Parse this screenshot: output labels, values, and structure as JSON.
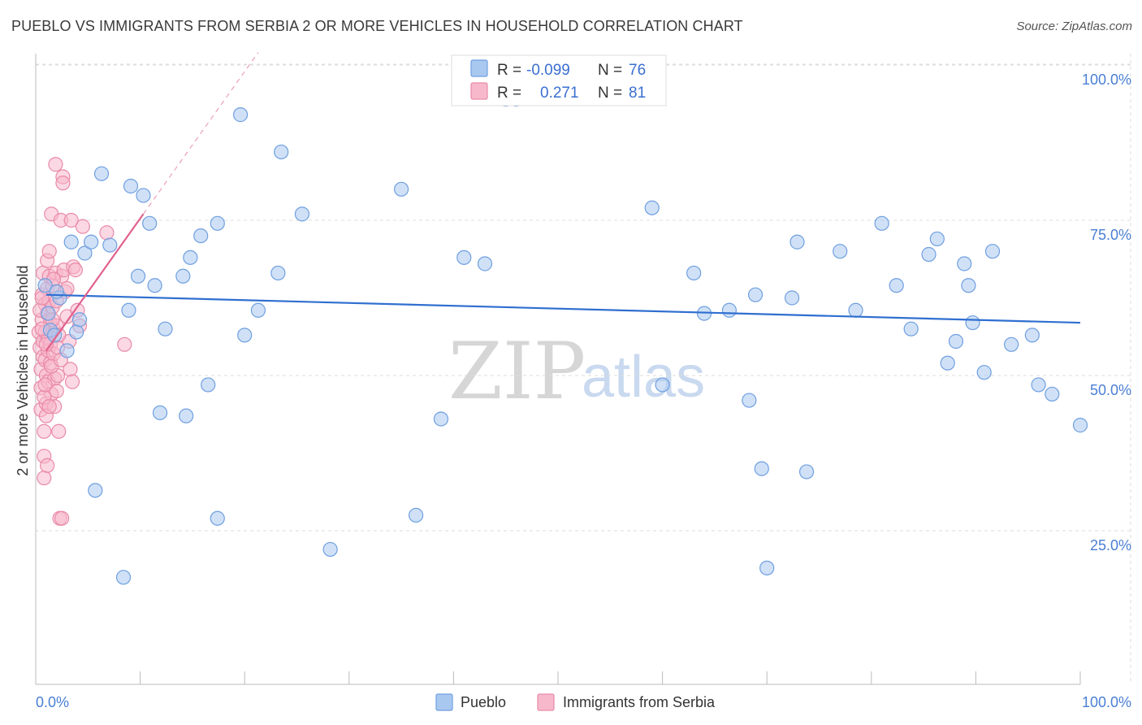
{
  "title": "PUEBLO VS IMMIGRANTS FROM SERBIA 2 OR MORE VEHICLES IN HOUSEHOLD CORRELATION CHART",
  "source": "Source: ZipAtlas.com",
  "watermark": {
    "zip": "ZIP",
    "atlas": "atlas"
  },
  "colors": {
    "pueblo_fill": "#a9c8f0",
    "pueblo_stroke": "#6f9fe0",
    "pueblo_line": "#2f6fd0",
    "serbia_fill": "#f7b8cc",
    "serbia_stroke": "#e98aa8",
    "serbia_line": "#e0608e",
    "tick_label": "#4a7fd4",
    "grid": "#dddddd"
  },
  "legend": {
    "rows": [
      {
        "r_label": "R =",
        "r_value": "-0.099",
        "n_label": "N =",
        "n_value": "76"
      },
      {
        "r_label": "R =",
        "r_value": "0.271",
        "n_label": "N =",
        "n_value": "81"
      }
    ]
  },
  "chart_data": {
    "type": "scatter",
    "title": "PUEBLO VS IMMIGRANTS FROM SERBIA 2 OR MORE VEHICLES IN HOUSEHOLD CORRELATION CHART",
    "xlabel": "",
    "ylabel": "2 or more Vehicles in Household",
    "xlim": [
      0,
      100
    ],
    "ylim": [
      0,
      102
    ],
    "x_tick_labels": [
      "0.0%",
      "100.0%"
    ],
    "y_ticks": [
      25,
      50,
      75,
      100
    ],
    "y_tick_labels": [
      "25.0%",
      "50.0%",
      "75.0%",
      "100.0%"
    ],
    "grid": true,
    "legend_position": "top-center",
    "series": [
      {
        "name": "Pueblo",
        "R": -0.099,
        "N": 76,
        "trend": {
          "x0": 1,
          "y0": 63.0,
          "x1": 100,
          "y1": 58.5
        },
        "points": [
          [
            0.9,
            64.5
          ],
          [
            1.4,
            57.3
          ],
          [
            1.8,
            56.5
          ],
          [
            2.3,
            62.5
          ],
          [
            3.0,
            54.0
          ],
          [
            3.4,
            71.5
          ],
          [
            3.9,
            57.0
          ],
          [
            4.2,
            59.0
          ],
          [
            4.7,
            69.7
          ],
          [
            5.3,
            71.5
          ],
          [
            5.7,
            31.5
          ],
          [
            6.3,
            82.5
          ],
          [
            7.1,
            71.0
          ],
          [
            8.4,
            17.5
          ],
          [
            8.9,
            60.5
          ],
          [
            9.1,
            80.5
          ],
          [
            9.8,
            66.0
          ],
          [
            10.3,
            79.0
          ],
          [
            10.9,
            74.5
          ],
          [
            11.4,
            64.5
          ],
          [
            11.9,
            44.0
          ],
          [
            12.4,
            57.5
          ],
          [
            14.1,
            66.0
          ],
          [
            14.4,
            43.5
          ],
          [
            14.8,
            69.0
          ],
          [
            15.8,
            72.5
          ],
          [
            16.5,
            48.5
          ],
          [
            17.4,
            74.5
          ],
          [
            17.4,
            27.0
          ],
          [
            19.6,
            92.0
          ],
          [
            20.0,
            56.5
          ],
          [
            21.3,
            60.5
          ],
          [
            23.2,
            66.5
          ],
          [
            23.5,
            86.0
          ],
          [
            25.5,
            76.0
          ],
          [
            28.2,
            22.0
          ],
          [
            35.0,
            80.0
          ],
          [
            36.4,
            27.5
          ],
          [
            38.8,
            43.0
          ],
          [
            41.0,
            69.0
          ],
          [
            43.0,
            68.0
          ],
          [
            45.0,
            94.5
          ],
          [
            46.0,
            94.5
          ],
          [
            59.0,
            77.0
          ],
          [
            60.0,
            48.5
          ],
          [
            63.0,
            66.5
          ],
          [
            64.0,
            60.0
          ],
          [
            66.4,
            60.5
          ],
          [
            68.3,
            46.0
          ],
          [
            68.9,
            63.0
          ],
          [
            69.5,
            35.0
          ],
          [
            70.0,
            19.0
          ],
          [
            72.4,
            62.5
          ],
          [
            72.9,
            71.5
          ],
          [
            73.8,
            34.5
          ],
          [
            77.0,
            70.0
          ],
          [
            78.5,
            60.5
          ],
          [
            81.0,
            74.5
          ],
          [
            82.4,
            64.5
          ],
          [
            83.8,
            57.5
          ],
          [
            85.5,
            69.5
          ],
          [
            86.3,
            72.0
          ],
          [
            87.3,
            52.0
          ],
          [
            88.1,
            55.5
          ],
          [
            88.9,
            68.0
          ],
          [
            89.3,
            64.5
          ],
          [
            89.7,
            58.5
          ],
          [
            90.8,
            50.5
          ],
          [
            91.6,
            70.0
          ],
          [
            93.4,
            55.0
          ],
          [
            95.4,
            56.5
          ],
          [
            96.0,
            48.5
          ],
          [
            97.3,
            47.0
          ],
          [
            100.0,
            42.0
          ],
          [
            1.2,
            60.0
          ],
          [
            2.0,
            63.5
          ]
        ]
      },
      {
        "name": "Immigrants from Serbia",
        "R": 0.271,
        "N": 81,
        "trend": {
          "x0": 1,
          "y0": 54.0,
          "x1": 10.3,
          "y1": 76.0
        },
        "points": [
          [
            0.3,
            57.0
          ],
          [
            0.4,
            54.5
          ],
          [
            0.5,
            51.0
          ],
          [
            0.5,
            48.0
          ],
          [
            0.5,
            44.5
          ],
          [
            0.6,
            63.0
          ],
          [
            0.6,
            59.0
          ],
          [
            0.7,
            66.5
          ],
          [
            0.7,
            55.5
          ],
          [
            0.7,
            53.0
          ],
          [
            0.8,
            41.0
          ],
          [
            0.8,
            37.0
          ],
          [
            0.8,
            33.5
          ],
          [
            0.9,
            61.5
          ],
          [
            0.9,
            57.0
          ],
          [
            0.9,
            52.5
          ],
          [
            1.0,
            50.0
          ],
          [
            1.0,
            45.5
          ],
          [
            1.0,
            43.5
          ],
          [
            1.1,
            68.5
          ],
          [
            1.1,
            64.0
          ],
          [
            1.1,
            60.0
          ],
          [
            1.2,
            56.0
          ],
          [
            1.2,
            54.0
          ],
          [
            1.2,
            49.0
          ],
          [
            1.3,
            70.0
          ],
          [
            1.3,
            66.0
          ],
          [
            1.3,
            62.0
          ],
          [
            1.4,
            58.5
          ],
          [
            1.4,
            55.0
          ],
          [
            1.4,
            52.0
          ],
          [
            1.5,
            47.0
          ],
          [
            1.5,
            76.0
          ],
          [
            1.6,
            64.5
          ],
          [
            1.6,
            61.0
          ],
          [
            1.7,
            57.5
          ],
          [
            1.7,
            53.5
          ],
          [
            1.8,
            49.5
          ],
          [
            1.8,
            45.0
          ],
          [
            1.9,
            84.0
          ],
          [
            1.9,
            66.5
          ],
          [
            2.0,
            62.0
          ],
          [
            2.0,
            58.0
          ],
          [
            2.1,
            54.5
          ],
          [
            2.1,
            50.0
          ],
          [
            2.2,
            41.0
          ],
          [
            2.3,
            27.0
          ],
          [
            2.4,
            75.0
          ],
          [
            2.5,
            66.0
          ],
          [
            2.6,
            82.0
          ],
          [
            2.6,
            81.0
          ],
          [
            2.7,
            67.0
          ],
          [
            2.8,
            63.5
          ],
          [
            3.0,
            59.5
          ],
          [
            3.2,
            55.5
          ],
          [
            3.3,
            51.0
          ],
          [
            3.4,
            75.0
          ],
          [
            3.5,
            49.0
          ],
          [
            3.6,
            67.5
          ],
          [
            3.8,
            67.0
          ],
          [
            4.0,
            60.5
          ],
          [
            4.2,
            58.0
          ],
          [
            4.5,
            74.0
          ],
          [
            6.8,
            73.0
          ],
          [
            8.5,
            55.0
          ],
          [
            2.5,
            27.0
          ],
          [
            0.4,
            60.5
          ],
          [
            0.6,
            57.5
          ],
          [
            1.0,
            55.0
          ],
          [
            1.5,
            51.5
          ],
          [
            0.8,
            46.5
          ],
          [
            2.0,
            47.5
          ],
          [
            1.1,
            35.5
          ],
          [
            2.4,
            52.5
          ],
          [
            0.9,
            48.5
          ],
          [
            1.7,
            65.5
          ],
          [
            2.2,
            56.5
          ],
          [
            0.6,
            62.5
          ],
          [
            1.3,
            45.0
          ],
          [
            3.0,
            64.0
          ],
          [
            1.6,
            59.0
          ]
        ]
      }
    ]
  },
  "bottom_legend": [
    {
      "label": "Pueblo"
    },
    {
      "label": "Immigrants from Serbia"
    }
  ]
}
